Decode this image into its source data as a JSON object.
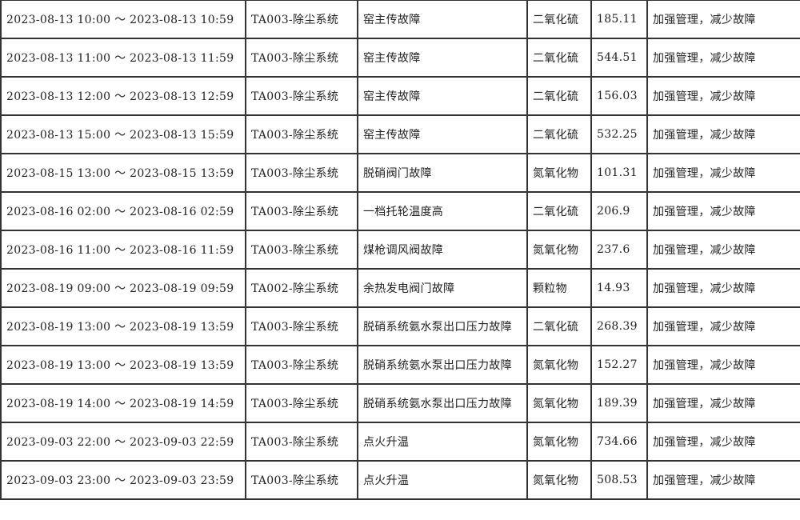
{
  "table": {
    "rows": [
      {
        "period": "2023-08-13 10:00 ～ 2023-08-13 10:59",
        "system": "TA003-除尘系统",
        "fault": "窑主传故障",
        "pollutant": "二氧化硫",
        "value": "185.11",
        "measure": "加强管理，减少故障"
      },
      {
        "period": "2023-08-13 11:00 ～ 2023-08-13 11:59",
        "system": "TA003-除尘系统",
        "fault": "窑主传故障",
        "pollutant": "二氧化硫",
        "value": "544.51",
        "measure": "加强管理，减少故障"
      },
      {
        "period": "2023-08-13 12:00 ～ 2023-08-13 12:59",
        "system": "TA003-除尘系统",
        "fault": "窑主传故障",
        "pollutant": "二氧化硫",
        "value": "156.03",
        "measure": "加强管理，减少故障"
      },
      {
        "period": "2023-08-13 15:00 ～ 2023-08-13 15:59",
        "system": "TA003-除尘系统",
        "fault": "窑主传故障",
        "pollutant": "二氧化硫",
        "value": "532.25",
        "measure": "加强管理，减少故障"
      },
      {
        "period": "2023-08-15 13:00 ～ 2023-08-15 13:59",
        "system": "TA003-除尘系统",
        "fault": "脱硝阀门故障",
        "pollutant": "氮氧化物",
        "value": "101.31",
        "measure": "加强管理，减少故障"
      },
      {
        "period": "2023-08-16 02:00 ～ 2023-08-16 02:59",
        "system": "TA003-除尘系统",
        "fault": "一档托轮温度高",
        "pollutant": "二氧化硫",
        "value": "206.9",
        "measure": "加强管理，减少故障"
      },
      {
        "period": "2023-08-16 11:00 ～ 2023-08-16 11:59",
        "system": "TA003-除尘系统",
        "fault": "煤枪调风阀故障",
        "pollutant": "氮氧化物",
        "value": "237.6",
        "measure": "加强管理，减少故障"
      },
      {
        "period": "2023-08-19 09:00 ～ 2023-08-19 09:59",
        "system": "TA002-除尘系统",
        "fault": "余热发电阀门故障",
        "pollutant": "颗粒物",
        "value": "14.93",
        "measure": "加强管理，减少故障"
      },
      {
        "period": "2023-08-19 13:00 ～ 2023-08-19 13:59",
        "system": "TA003-除尘系统",
        "fault": "脱硝系统氨水泵出口压力故障",
        "pollutant": "二氧化硫",
        "value": "268.39",
        "measure": "加强管理，减少故障"
      },
      {
        "period": "2023-08-19 13:00 ～ 2023-08-19 13:59",
        "system": "TA003-除尘系统",
        "fault": "脱硝系统氨水泵出口压力故障",
        "pollutant": "氮氧化物",
        "value": "152.27",
        "measure": "加强管理，减少故障"
      },
      {
        "period": "2023-08-19 14:00 ～ 2023-08-19 14:59",
        "system": "TA003-除尘系统",
        "fault": "脱硝系统氨水泵出口压力故障",
        "pollutant": "氮氧化物",
        "value": "189.39",
        "measure": "加强管理，减少故障"
      },
      {
        "period": "2023-09-03 22:00 ～ 2023-09-03 22:59",
        "system": "TA003-除尘系统",
        "fault": "点火升温",
        "pollutant": "氮氧化物",
        "value": "734.66",
        "measure": "加强管理，减少故障"
      },
      {
        "period": "2023-09-03 23:00 ～ 2023-09-03 23:59",
        "system": "TA003-除尘系统",
        "fault": "点火升温",
        "pollutant": "氮氧化物",
        "value": "508.53",
        "measure": "加强管理，减少故障"
      }
    ]
  }
}
